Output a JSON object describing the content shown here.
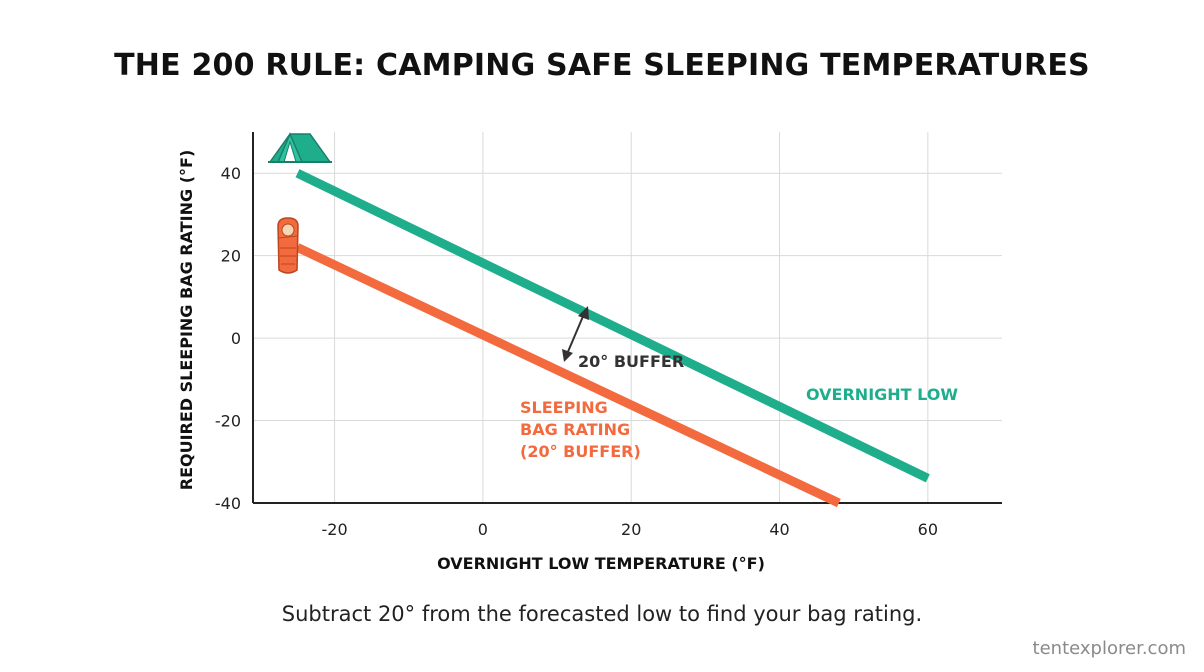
{
  "title": "THE 200 RULE: CAMPING SAFE SLEEPING TEMPERATURES",
  "caption": "Subtract 20° from the forecasted low to find your bag rating.",
  "watermark": "tentexplorer.com",
  "colors": {
    "overnight_low": "#1fae8c",
    "sleeping_bag": "#f26a3d",
    "grid": "#d9d9d9",
    "axis": "#222222"
  },
  "icons": [
    "tent-icon",
    "sleeping-bag-icon",
    "double-arrow-icon"
  ],
  "chart_data": {
    "type": "line",
    "title": "THE 200 RULE: CAMPING SAFE SLEEPING TEMPERATURES",
    "xlabel": "OVERNIGHT LOW TEMPERATURE (°F)",
    "ylabel": "REQUIRED SLEEPING BAG RATING (°F)",
    "xlim": [
      -31,
      70
    ],
    "ylim": [
      -40,
      50
    ],
    "xticks": [
      -20,
      0,
      20,
      40,
      60
    ],
    "yticks": [
      -40,
      -20,
      0,
      20,
      40
    ],
    "grid": true,
    "series": [
      {
        "name": "OVERNIGHT LOW",
        "x": [
          -25,
          60
        ],
        "y": [
          40,
          -34
        ],
        "color": "#1fae8c"
      },
      {
        "name": "SLEEPING BAG RATING (20° BUFFER)",
        "x": [
          -25,
          48
        ],
        "y": [
          22,
          -40
        ],
        "color": "#f26a3d"
      }
    ],
    "annotations": [
      {
        "text": "20° BUFFER",
        "x": 11,
        "y": -6
      }
    ]
  }
}
